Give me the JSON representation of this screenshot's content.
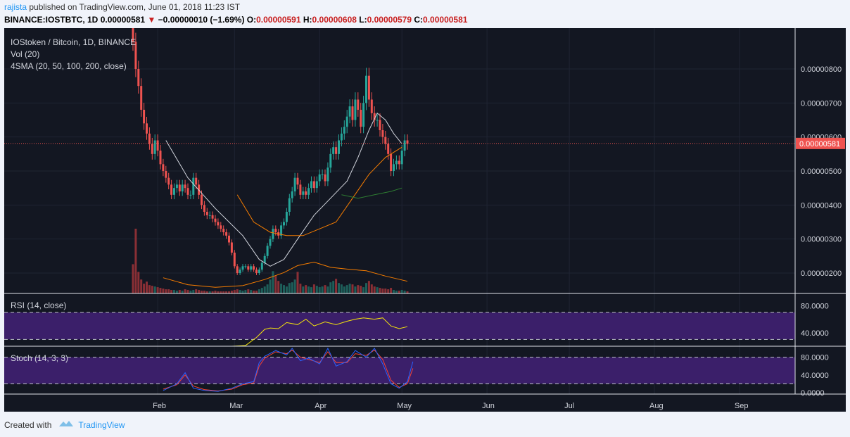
{
  "header": {
    "author": "rajista",
    "published_text": "published on TradingView.com, June 01, 2018 11:23 IST",
    "symbol": "BINANCE:IOSTBTC, 1D",
    "last": "0.00000581",
    "change": "−0.00000010 (−1.69%)",
    "o_label": "O:",
    "o": "0.00000591",
    "h_label": "H:",
    "h": "0.00000608",
    "l_label": "L:",
    "l": "0.00000579",
    "c_label": "C:",
    "c": "0.00000581"
  },
  "legend": {
    "title": "IOStoken / Bitcoin, 1D, BINANCE",
    "vol": "Vol (20)",
    "sma": "4SMA (20, 50, 100, 200, close)"
  },
  "rsi_label": "RSI (14, close)",
  "stoch_label": "Stoch (14, 3, 3)",
  "price_axis": [
    "0.00000800",
    "0.00000700",
    "0.00000600",
    "0.00000500",
    "0.00000400",
    "0.00000300",
    "0.00000200"
  ],
  "last_price_tag": "0.00000581",
  "rsi_axis": [
    "80.0000",
    "40.0000"
  ],
  "stoch_axis": [
    "80.0000",
    "40.0000",
    "0.0000"
  ],
  "time_axis": [
    "Feb",
    "Mar",
    "Apr",
    "May",
    "Jun",
    "Jul",
    "Aug",
    "Sep"
  ],
  "footer": {
    "created": "Created with",
    "brand": "TradingView"
  },
  "colors": {
    "background": "#131722",
    "up": "#26a69a",
    "down": "#ef5350",
    "sma20": "#d1d4dc",
    "sma50": "#f57c00",
    "sma100": "#2e7d32",
    "rsi_line": "#f5e50b",
    "rsi_fill": "#3b1f6a",
    "stoch_k": "#2962ff",
    "stoch_d": "#f44336",
    "last_price": "#ef5350"
  },
  "chart_data": {
    "type": "candlestick",
    "title": "IOStoken / Bitcoin, 1D, BINANCE",
    "x_range": [
      "2018-01-23",
      "2018-06-01"
    ],
    "ylim": [
      1.4e-06,
      9.2e-06
    ],
    "last_price": 5.81e-06,
    "open": [
      9.4e-06,
      8.8e-06,
      8e-06,
      7.5e-06,
      6.8e-06,
      6.4e-06,
      6.1e-06,
      5.8e-06,
      5.5e-06,
      5.9e-06,
      5.6e-06,
      5.2e-06,
      5e-06,
      4.8e-06,
      4.6e-06,
      4.3e-06,
      4.5e-06,
      4.6e-06,
      4.4e-06,
      4.6e-06,
      4.5e-06,
      4.3e-06,
      4.3e-06,
      4.8e-06,
      4.6e-06,
      4.3e-06,
      4e-06,
      3.8e-06,
      3.7e-06,
      3.7e-06,
      3.6e-06,
      3.5e-06,
      3.4e-06,
      3.3e-06,
      3.2e-06,
      3.1e-06,
      2.9e-06,
      2.6e-06,
      2.2e-06,
      2e-06,
      2.1e-06,
      2.2e-06,
      2.2e-06,
      2.1e-06,
      2.2e-06,
      2.1e-06,
      2e-06,
      2.1e-06,
      2.3e-06,
      2.5e-06,
      2.8e-06,
      3e-06,
      3.3e-06,
      3.2e-06,
      3.1e-06,
      3.4e-06,
      3.5e-06,
      3.8e-06,
      4.2e-06,
      4.4e-06,
      4.8e-06,
      4.6e-06,
      4.3e-06,
      4.4e-06,
      4.3e-06,
      4.5e-06,
      4.7e-06,
      4.5e-06,
      4.7e-06,
      4.9e-06,
      4.9e-06,
      4.7e-06,
      5.1e-06,
      5.5e-06,
      5.7e-06,
      5.5e-06,
      5.9e-06,
      6.1e-06,
      6.3e-06,
      6.6e-06,
      6.9e-06,
      6.5e-06,
      7.1e-06,
      6.8e-06,
      6.3e-06,
      7e-06,
      7.8e-06,
      7.1e-06,
      6.7e-06,
      6.5e-06,
      6.5e-06,
      6.2e-06,
      6e-06,
      5.8e-06,
      5.5e-06,
      5e-06,
      5.2e-06,
      5.3e-06,
      5.2e-06,
      5.6e-06,
      5.9e-06
    ],
    "close": [
      8.8e-06,
      8e-06,
      7.5e-06,
      6.8e-06,
      6.4e-06,
      6.1e-06,
      5.8e-06,
      5.5e-06,
      5.9e-06,
      5.6e-06,
      5.2e-06,
      5e-06,
      4.8e-06,
      4.6e-06,
      4.3e-06,
      4.5e-06,
      4.6e-06,
      4.4e-06,
      4.6e-06,
      4.5e-06,
      4.3e-06,
      4.3e-06,
      4.8e-06,
      4.6e-06,
      4.3e-06,
      4e-06,
      3.8e-06,
      3.7e-06,
      3.7e-06,
      3.6e-06,
      3.5e-06,
      3.4e-06,
      3.3e-06,
      3.2e-06,
      3.1e-06,
      2.9e-06,
      2.6e-06,
      2.2e-06,
      2e-06,
      2.1e-06,
      2.2e-06,
      2.2e-06,
      2.1e-06,
      2.2e-06,
      2.1e-06,
      2e-06,
      2.1e-06,
      2.3e-06,
      2.5e-06,
      2.8e-06,
      3e-06,
      3.3e-06,
      3.2e-06,
      3.1e-06,
      3.4e-06,
      3.5e-06,
      3.8e-06,
      4.2e-06,
      4.4e-06,
      4.8e-06,
      4.6e-06,
      4.3e-06,
      4.4e-06,
      4.3e-06,
      4.5e-06,
      4.7e-06,
      4.5e-06,
      4.7e-06,
      4.9e-06,
      4.9e-06,
      4.7e-06,
      5.1e-06,
      5.5e-06,
      5.7e-06,
      5.5e-06,
      5.9e-06,
      6.1e-06,
      6.3e-06,
      6.6e-06,
      6.9e-06,
      6.5e-06,
      7.1e-06,
      6.8e-06,
      6.3e-06,
      7e-06,
      7.8e-06,
      7.1e-06,
      6.7e-06,
      6.5e-06,
      6.5e-06,
      6.2e-06,
      6e-06,
      5.8e-06,
      5.5e-06,
      5e-06,
      5.2e-06,
      5.3e-06,
      5.2e-06,
      5.6e-06,
      5.9e-06,
      5.8e-06
    ],
    "sma20": [
      [
        12,
        5.9e-06
      ],
      [
        20,
        4.8e-06
      ],
      [
        30,
        3.9e-06
      ],
      [
        40,
        3.1e-06
      ],
      [
        46,
        2.4e-06
      ],
      [
        50,
        2.2e-06
      ],
      [
        55,
        2.4e-06
      ],
      [
        60,
        3e-06
      ],
      [
        66,
        3.7e-06
      ],
      [
        72,
        4.2e-06
      ],
      [
        78,
        4.7e-06
      ],
      [
        82,
        5.4e-06
      ],
      [
        86,
        6.2e-06
      ],
      [
        89,
        6.7e-06
      ],
      [
        92,
        6.5e-06
      ],
      [
        95,
        6.1e-06
      ],
      [
        98,
        5.8e-06
      ]
    ],
    "sma50": [
      [
        38,
        4.3e-06
      ],
      [
        44,
        3.5e-06
      ],
      [
        50,
        3.2e-06
      ],
      [
        56,
        3.1e-06
      ],
      [
        62,
        3.1e-06
      ],
      [
        68,
        3.3e-06
      ],
      [
        74,
        3.5e-06
      ],
      [
        80,
        4.2e-06
      ],
      [
        86,
        4.9e-06
      ],
      [
        92,
        5.4e-06
      ],
      [
        98,
        5.7e-06
      ]
    ],
    "sma100": [
      [
        76,
        4.3e-06
      ],
      [
        82,
        4.2e-06
      ],
      [
        88,
        4.3e-06
      ],
      [
        94,
        4.4e-06
      ],
      [
        98,
        4.5e-06
      ]
    ],
    "rsi_ylim": [
      20,
      95
    ],
    "rsi_levels": [
      70,
      30
    ],
    "rsi": [
      [
        36,
        20
      ],
      [
        41,
        21
      ],
      [
        45,
        33
      ],
      [
        48,
        45
      ],
      [
        50,
        47
      ],
      [
        53,
        46
      ],
      [
        56,
        55
      ],
      [
        60,
        52
      ],
      [
        63,
        60
      ],
      [
        66,
        50
      ],
      [
        70,
        56
      ],
      [
        74,
        52
      ],
      [
        78,
        57
      ],
      [
        81,
        60
      ],
      [
        84,
        62
      ],
      [
        88,
        60
      ],
      [
        91,
        62
      ],
      [
        94,
        50
      ],
      [
        97,
        46
      ],
      [
        100,
        49
      ]
    ],
    "stoch_ylim": [
      0,
      100
    ],
    "stoch_levels": [
      80,
      20
    ],
    "stoch_k": [
      [
        11,
        5
      ],
      [
        16,
        20
      ],
      [
        19,
        45
      ],
      [
        22,
        10
      ],
      [
        26,
        5
      ],
      [
        31,
        3
      ],
      [
        36,
        10
      ],
      [
        40,
        20
      ],
      [
        44,
        25
      ],
      [
        46,
        68
      ],
      [
        48,
        82
      ],
      [
        52,
        95
      ],
      [
        56,
        85
      ],
      [
        58,
        100
      ],
      [
        61,
        72
      ],
      [
        64,
        78
      ],
      [
        68,
        65
      ],
      [
        71,
        100
      ],
      [
        74,
        60
      ],
      [
        78,
        70
      ],
      [
        81,
        95
      ],
      [
        85,
        80
      ],
      [
        88,
        100
      ],
      [
        91,
        65
      ],
      [
        94,
        20
      ],
      [
        97,
        10
      ],
      [
        100,
        25
      ],
      [
        102,
        70
      ]
    ],
    "stoch_d": [
      [
        11,
        8
      ],
      [
        16,
        18
      ],
      [
        19,
        40
      ],
      [
        22,
        15
      ],
      [
        26,
        7
      ],
      [
        31,
        4
      ],
      [
        36,
        8
      ],
      [
        40,
        18
      ],
      [
        44,
        22
      ],
      [
        46,
        60
      ],
      [
        48,
        78
      ],
      [
        52,
        92
      ],
      [
        56,
        88
      ],
      [
        58,
        96
      ],
      [
        61,
        80
      ],
      [
        64,
        75
      ],
      [
        68,
        68
      ],
      [
        71,
        92
      ],
      [
        74,
        68
      ],
      [
        78,
        68
      ],
      [
        81,
        88
      ],
      [
        85,
        84
      ],
      [
        88,
        96
      ],
      [
        91,
        75
      ],
      [
        94,
        28
      ],
      [
        97,
        12
      ],
      [
        100,
        20
      ],
      [
        102,
        55
      ]
    ],
    "volume": [
      4.2,
      9.3,
      3.1,
      2.0,
      1.4,
      1.7,
      1.2,
      1.1,
      1.0,
      0.9,
      0.8,
      0.7,
      0.6,
      0.6,
      0.5,
      0.5,
      0.4,
      0.5,
      0.4,
      0.6,
      0.5,
      0.4,
      0.5,
      0.6,
      0.5,
      0.4,
      0.4,
      0.3,
      0.3,
      0.3,
      0.4,
      0.3,
      0.3,
      0.3,
      0.3,
      0.3,
      0.4,
      0.5,
      0.6,
      0.5,
      0.4,
      0.5,
      0.6,
      0.5,
      0.4,
      0.4,
      0.6,
      0.8,
      1.0,
      1.3,
      2.0,
      3.2,
      2.5,
      1.8,
      1.4,
      1.2,
      1.0,
      1.5,
      1.6,
      2.0,
      3.1,
      1.4,
      1.0,
      1.2,
      1.0,
      0.9,
      1.3,
      1.1,
      0.9,
      1.0,
      1.2,
      1.0,
      1.6,
      1.8,
      2.1,
      1.5,
      1.3,
      1.0,
      1.2,
      1.4,
      1.3,
      1.0,
      1.2,
      1.1,
      0.9,
      1.5,
      1.8,
      1.3,
      1.0,
      0.9,
      0.8,
      0.7,
      0.7,
      0.6,
      0.8,
      0.5,
      0.4,
      0.4,
      0.5,
      0.4,
      0.3
    ]
  }
}
